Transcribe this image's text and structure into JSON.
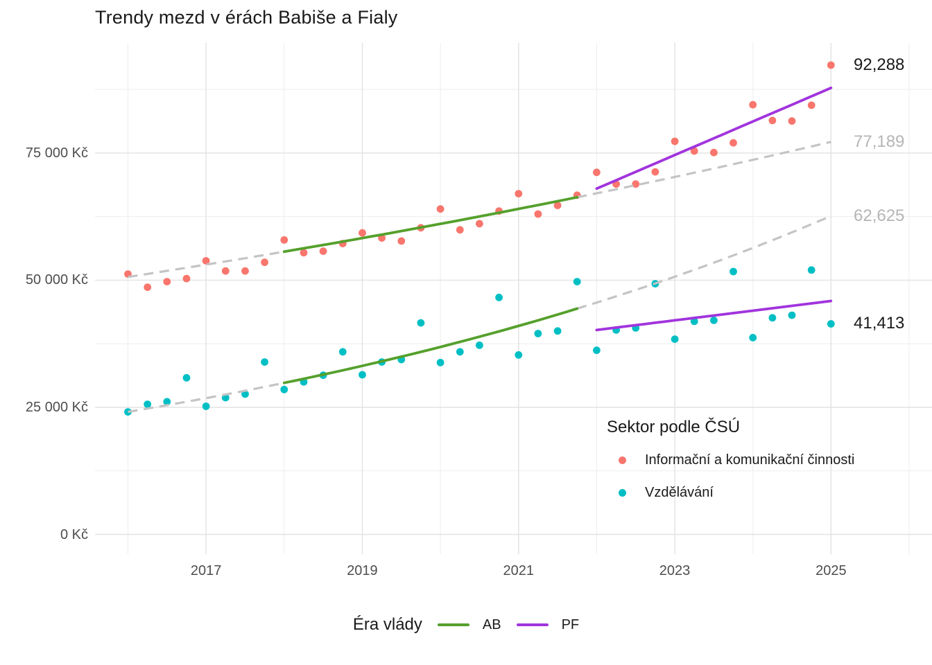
{
  "title": "Trendy mezd v érách Babiše a Fialy",
  "chart_data": {
    "type": "scatter",
    "title": "Trendy mezd v érách Babiše a Fialy",
    "xlabel": "",
    "ylabel": "",
    "y_unit": "Kč",
    "x_range": [
      2015.7,
      2026.3
    ],
    "y_range": [
      0,
      95000
    ],
    "grid": "on",
    "x_ticks": [
      {
        "year": 2017,
        "label": "2017"
      },
      {
        "year": 2019,
        "label": "2019"
      },
      {
        "year": 2021,
        "label": "2021"
      },
      {
        "year": 2023,
        "label": "2023"
      },
      {
        "year": 2025,
        "label": "2025"
      }
    ],
    "x_minor": [
      2016,
      2018,
      2020,
      2022,
      2024,
      2026
    ],
    "y_ticks": [
      {
        "value": 0,
        "label": "0 Kč"
      },
      {
        "value": 25000,
        "label": "25 000 Kč"
      },
      {
        "value": 50000,
        "label": "50 000 Kč"
      },
      {
        "value": 75000,
        "label": "75 000 Kč"
      }
    ],
    "y_minor": [
      12500,
      37500,
      62500,
      87500
    ],
    "series": [
      {
        "name": "Informační a komunikační činnosti",
        "color": "#f8766d",
        "x": [
          2016.0,
          2016.25,
          2016.5,
          2016.75,
          2017.0,
          2017.25,
          2017.5,
          2017.75,
          2018.0,
          2018.25,
          2018.5,
          2018.75,
          2019.0,
          2019.25,
          2019.5,
          2019.75,
          2020.0,
          2020.25,
          2020.5,
          2020.75,
          2021.0,
          2021.25,
          2021.5,
          2021.75,
          2022.0,
          2022.25,
          2022.5,
          2022.75,
          2023.0,
          2023.25,
          2023.5,
          2023.75,
          2024.0,
          2024.25,
          2024.5,
          2024.75,
          2025.0
        ],
        "values": [
          51200,
          48600,
          49700,
          50300,
          53800,
          51800,
          51800,
          53500,
          57900,
          55400,
          55700,
          57200,
          59300,
          58300,
          57700,
          60300,
          64000,
          59900,
          61100,
          63600,
          67000,
          63000,
          64700,
          66700,
          71200,
          68900,
          68900,
          71300,
          77300,
          75400,
          75100,
          77000,
          84500,
          81400,
          81300,
          84400,
          92288
        ]
      },
      {
        "name": "Vzdělávání",
        "color": "#00bfc4",
        "x": [
          2016.0,
          2016.25,
          2016.5,
          2016.75,
          2017.0,
          2017.25,
          2017.5,
          2017.75,
          2018.0,
          2018.25,
          2018.5,
          2018.75,
          2019.0,
          2019.25,
          2019.5,
          2019.75,
          2020.0,
          2020.25,
          2020.5,
          2020.75,
          2021.0,
          2021.25,
          2021.5,
          2021.75,
          2022.0,
          2022.25,
          2022.5,
          2022.75,
          2023.0,
          2023.25,
          2023.5,
          2023.75,
          2024.0,
          2024.25,
          2024.5,
          2024.75,
          2025.0
        ],
        "values": [
          24100,
          25600,
          26100,
          30800,
          25200,
          26900,
          27600,
          33900,
          28500,
          30000,
          31300,
          35900,
          31400,
          33900,
          34400,
          41600,
          33800,
          35900,
          37200,
          46600,
          35300,
          39500,
          40000,
          49700,
          36200,
          40200,
          40600,
          49300,
          38400,
          41900,
          42100,
          51700,
          38700,
          42600,
          43100,
          52000,
          41413
        ]
      }
    ],
    "trend_lines": [
      {
        "series": "Informační a komunikační činnosti",
        "era": "AB-projekce",
        "style": "dashed",
        "shape": "exp",
        "color": "#c4c4c4",
        "points": [
          [
            2016.0,
            50630
          ],
          [
            2018.0,
            55600
          ]
        ]
      },
      {
        "series": "Informační a komunikační činnosti",
        "era": "AB-projekce",
        "style": "dashed",
        "shape": "exp",
        "color": "#c4c4c4",
        "points": [
          [
            2021.75,
            66300
          ],
          [
            2025.0,
            77189
          ]
        ]
      },
      {
        "series": "Vzdělávání",
        "era": "AB-projekce",
        "style": "dashed",
        "shape": "exp",
        "color": "#c4c4c4",
        "points": [
          [
            2016.0,
            24100
          ],
          [
            2018.0,
            29800
          ]
        ]
      },
      {
        "series": "Vzdělávání",
        "era": "AB-projekce",
        "style": "dashed",
        "shape": "exp",
        "color": "#c4c4c4",
        "points": [
          [
            2021.75,
            44400
          ],
          [
            2025.0,
            62625
          ]
        ]
      },
      {
        "series": "Informační a komunikační činnosti",
        "era": "AB",
        "style": "solid",
        "shape": "exp",
        "color": "#55a02c",
        "points": [
          [
            2018.0,
            55600
          ],
          [
            2021.75,
            66300
          ]
        ]
      },
      {
        "series": "Vzdělávání",
        "era": "AB",
        "style": "solid",
        "shape": "exp",
        "color": "#55a02c",
        "points": [
          [
            2018.0,
            29800
          ],
          [
            2021.75,
            44400
          ]
        ]
      },
      {
        "series": "Informační a komunikační činnosti",
        "era": "PF",
        "style": "solid",
        "shape": "linear",
        "color": "#a134dd",
        "points": [
          [
            2022.0,
            68000
          ],
          [
            2025.0,
            87800
          ]
        ]
      },
      {
        "series": "Vzdělávání",
        "era": "PF",
        "style": "solid",
        "shape": "linear",
        "color": "#a134dd",
        "points": [
          [
            2022.0,
            40200
          ],
          [
            2025.0,
            45900
          ]
        ]
      }
    ],
    "annotations": [
      {
        "text": "92,288",
        "value": 92288,
        "color": "#1a1a1a"
      },
      {
        "text": "77,189",
        "value": 77189,
        "color": "#b5b5b5"
      },
      {
        "text": "62,625",
        "value": 62625,
        "color": "#b5b5b5"
      },
      {
        "text": "41,413",
        "value": 41413,
        "color": "#1a1a1a"
      }
    ],
    "legend_sector": {
      "title": "Sektor podle ČSÚ",
      "items": [
        {
          "label": "Informační a komunikační činnosti",
          "color": "#f8766d"
        },
        {
          "label": "Vzdělávání",
          "color": "#00bfc4"
        }
      ]
    },
    "legend_era": {
      "title": "Éra vlády",
      "items": [
        {
          "label": "AB",
          "color": "#55a02c"
        },
        {
          "label": "PF",
          "color": "#a134dd"
        }
      ]
    }
  }
}
